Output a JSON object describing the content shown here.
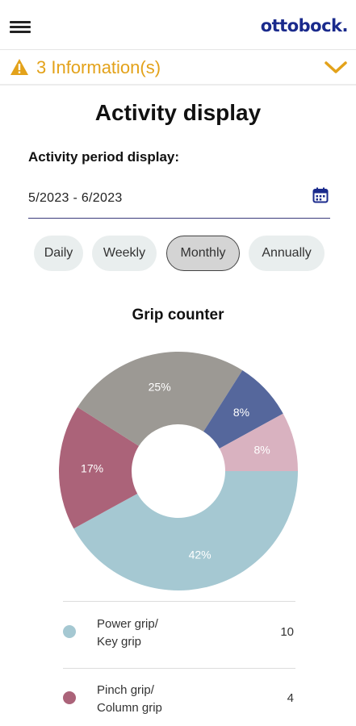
{
  "header": {
    "logo_text": "ottobock."
  },
  "info_banner": {
    "text": "3 Information(s)",
    "color": "#e3a21a"
  },
  "page": {
    "title": "Activity display"
  },
  "period": {
    "label": "Activity period display:",
    "value": "5/2023 - 6/2023"
  },
  "filters": {
    "daily": "Daily",
    "weekly": "Weekly",
    "monthly": "Monthly",
    "annually": "Annually",
    "selected": "Monthly"
  },
  "chart_data": {
    "type": "pie",
    "title": "Grip counter",
    "slices": [
      {
        "label": "Power grip/ Key grip",
        "value": 42,
        "display": "42%",
        "color": "#a5c8d2"
      },
      {
        "label": "Pinch grip/ Column grip",
        "value": 17,
        "display": "17%",
        "color": "#ab6379"
      },
      {
        "label": "",
        "value": 25,
        "display": "25%",
        "color": "#9c9994"
      },
      {
        "label": "",
        "value": 8,
        "display": "8%",
        "color": "#55679c"
      },
      {
        "label": "",
        "value": 8,
        "display": "8%",
        "color": "#d9b2c0"
      }
    ]
  },
  "legend": [
    {
      "line1": "Power grip/",
      "line2": "Key grip",
      "count": "10",
      "color": "#a5c8d2"
    },
    {
      "line1": "Pinch grip/",
      "line2": "Column grip",
      "count": "4",
      "color": "#ab6379"
    }
  ]
}
